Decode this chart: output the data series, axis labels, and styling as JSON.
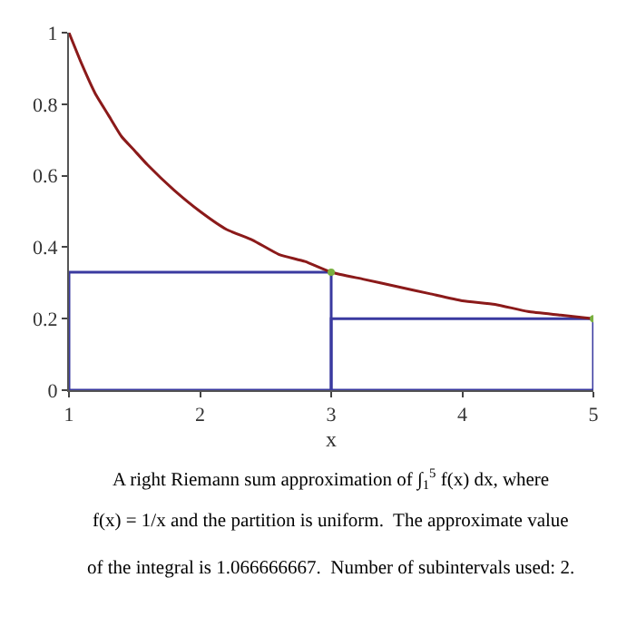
{
  "chart_data": {
    "type": "line",
    "xlabel": "x",
    "x": [
      1,
      1.1,
      1.2,
      1.3,
      1.4,
      1.5,
      1.6,
      1.8,
      2,
      2.2,
      2.4,
      2.6,
      2.8,
      3,
      3.25,
      3.5,
      3.75,
      4,
      4.25,
      4.5,
      4.75,
      5
    ],
    "series": [
      {
        "color": "#8b1a1a",
        "values": [
          1,
          0.91,
          0.83,
          0.77,
          0.71,
          0.67,
          0.63,
          0.56,
          0.5,
          0.45,
          0.42,
          0.38,
          0.36,
          0.33,
          0.31,
          0.29,
          0.27,
          0.25,
          0.24,
          0.22,
          0.21,
          0.2
        ]
      },
      {
        "type": "bar",
        "color": "#3a3aa0",
        "x": [
          2,
          4
        ],
        "values": [
          0.33,
          0.2
        ]
      },
      {
        "type": "scatter",
        "color": "#7ab040",
        "x": [
          3,
          5
        ],
        "values": [
          0.33,
          0.2
        ]
      }
    ],
    "xlim": [
      1,
      5
    ],
    "ylim": [
      0,
      1
    ],
    "xticks": [
      1,
      2,
      3,
      4,
      5
    ],
    "yticks": [
      0,
      0.2,
      0.4,
      0.6,
      0.8,
      1
    ],
    "annotations": [
      "A right Riemann sum approximation of ∫$_{1}$$^{5}$ f(x) dx, where",
      "f(x) = 1/x and the partition is uniform.  The approximate value",
      "of the integral is 1.066666667.  Number of subintervals used: 2."
    ]
  }
}
